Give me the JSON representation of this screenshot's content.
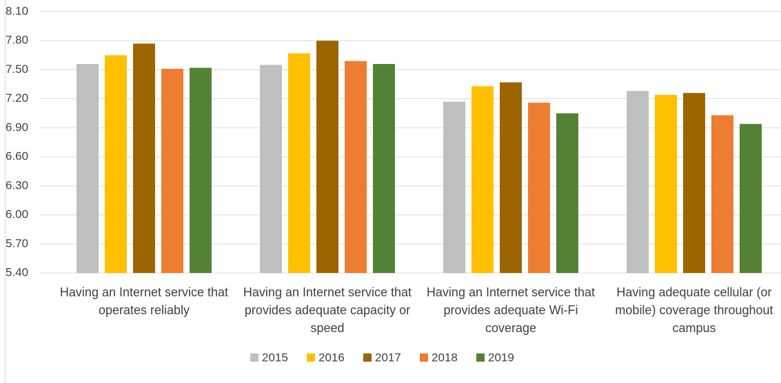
{
  "chart_data": {
    "type": "bar",
    "categories": [
      "Having an Internet service that operates reliably",
      "Having an Internet service that provides adequate capacity or speed",
      "Having an Internet service that provides adequate Wi-Fi coverage",
      "Having adequate cellular (or mobile) coverage throughout campus"
    ],
    "series": [
      {
        "name": "2015",
        "color": "#bfbfbf",
        "values": [
          7.56,
          7.55,
          7.17,
          7.28
        ]
      },
      {
        "name": "2016",
        "color": "#ffc000",
        "values": [
          7.65,
          7.67,
          7.33,
          7.24
        ]
      },
      {
        "name": "2017",
        "color": "#9c6500",
        "values": [
          7.77,
          7.8,
          7.37,
          7.26
        ]
      },
      {
        "name": "2018",
        "color": "#ed7d31",
        "values": [
          7.51,
          7.59,
          7.16,
          7.03
        ]
      },
      {
        "name": "2019",
        "color": "#548235",
        "values": [
          7.52,
          7.56,
          7.05,
          6.94
        ]
      }
    ],
    "ylim": [
      5.4,
      8.1
    ],
    "yticks": [
      {
        "value": 5.4,
        "label": "5.40"
      },
      {
        "value": 5.7,
        "label": "5.70"
      },
      {
        "value": 6.0,
        "label": "6.00"
      },
      {
        "value": 6.3,
        "label": "6.30"
      },
      {
        "value": 6.6,
        "label": "6.60"
      },
      {
        "value": 6.9,
        "label": "6.90"
      },
      {
        "value": 7.2,
        "label": "7.20"
      },
      {
        "value": 7.5,
        "label": "7.50"
      },
      {
        "value": 7.8,
        "label": "7.80"
      },
      {
        "value": 8.1,
        "label": "8.10"
      }
    ],
    "grid": true,
    "legend": "bottom"
  }
}
